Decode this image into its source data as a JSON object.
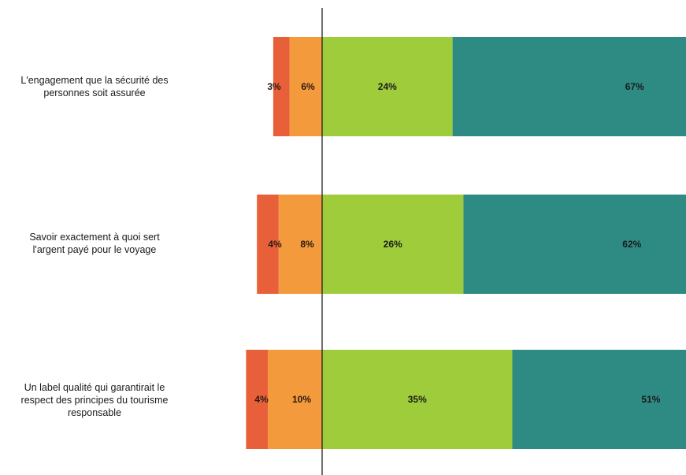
{
  "chart_data": {
    "type": "bar",
    "stacked": true,
    "diverging": true,
    "grid": false,
    "categories": [
      "L'engagement que la sécurité des\npersonnes soit assurée",
      "Savoir exactement à quoi sert\nl'argent payé pour le voyage",
      "Un label qualité qui garantirait le\nrespect des principes du tourisme\nresponsable"
    ],
    "series": [
      {
        "values": [
          3,
          4,
          4
        ],
        "labels": [
          "3%",
          "4%",
          "4%"
        ],
        "color": "#e8603a",
        "side": "negative"
      },
      {
        "values": [
          6,
          8,
          10
        ],
        "labels": [
          "6%",
          "8%",
          "10%"
        ],
        "color": "#f39a3c",
        "side": "negative"
      },
      {
        "values": [
          24,
          26,
          35
        ],
        "labels": [
          "24%",
          "26%",
          "35%"
        ],
        "color": "#9fcc3b",
        "side": "positive"
      },
      {
        "values": [
          67,
          62,
          51
        ],
        "labels": [
          "67%",
          "62%",
          "51%"
        ],
        "color": "#2e8b84",
        "side": "positive"
      }
    ]
  }
}
